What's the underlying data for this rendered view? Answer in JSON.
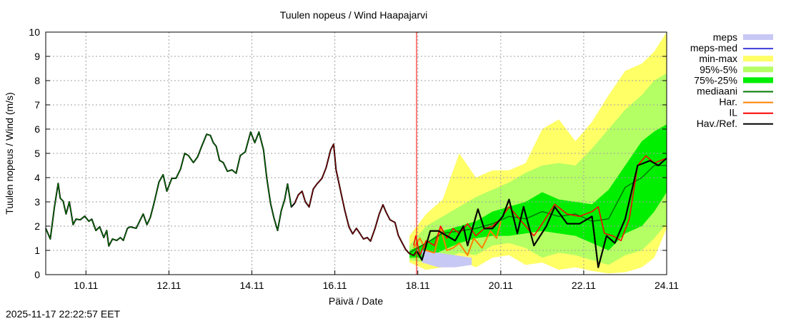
{
  "timestamp": "2025-11-17 22:22:57 EET",
  "chart_data": {
    "type": "area",
    "title": "Tuulen nopeus / Wind  Haapajarvi",
    "xlabel": "Päivä / Date",
    "ylabel": "Tuulen nopeus / Wind (m/s)",
    "xlim_day_of_november": [
      9.03,
      24.0
    ],
    "ylim": [
      0,
      10
    ],
    "yticks": [
      "0",
      "1",
      "2",
      "3",
      "4",
      "5",
      "6",
      "7",
      "8",
      "9",
      "10"
    ],
    "xticks": [
      {
        "day": 10,
        "label": "10.11"
      },
      {
        "day": 12,
        "label": "12.11"
      },
      {
        "day": 14,
        "label": "14.11"
      },
      {
        "day": 16,
        "label": "16.11"
      },
      {
        "day": 18,
        "label": "18.11"
      },
      {
        "day": 20,
        "label": "20.11"
      },
      {
        "day": 22,
        "label": "22.11"
      },
      {
        "day": 24,
        "label": "24.11"
      }
    ],
    "grid": true,
    "legend_position": "right",
    "now_line_day": 17.97,
    "now_line_color": "#ff0000",
    "legend": [
      {
        "label": "meps",
        "kind": "band",
        "color": "#c8c8f5"
      },
      {
        "label": "meps-med",
        "kind": "line",
        "color": "#3c3cdc"
      },
      {
        "label": "min-max",
        "kind": "band",
        "color": "#ffff66"
      },
      {
        "label": "95%-5%",
        "kind": "band",
        "color": "#b4ff64"
      },
      {
        "label": "75%-25%",
        "kind": "band",
        "color": "#00ee00"
      },
      {
        "label": "mediaani",
        "kind": "line",
        "color": "#007800"
      },
      {
        "label": "Har.",
        "kind": "line",
        "color": "#ff8000"
      },
      {
        "label": "IL",
        "kind": "line",
        "color": "#ff0000"
      },
      {
        "label": "Hav./Ref.",
        "kind": "line",
        "color": "#000000"
      }
    ],
    "bands": {
      "x": [
        17.8,
        18.2,
        18.6,
        19.0,
        19.4,
        19.8,
        20.2,
        20.6,
        21.0,
        21.4,
        21.8,
        22.2,
        22.6,
        23.0,
        23.4,
        23.7,
        24.0
      ],
      "min-max": {
        "upper": [
          1.6,
          2.5,
          3.1,
          5.0,
          4.0,
          4.3,
          4.3,
          4.6,
          6.0,
          6.4,
          5.5,
          6.3,
          7.4,
          8.4,
          8.7,
          9.2,
          10.0
        ],
        "lower": [
          0.5,
          0.2,
          0.3,
          0.6,
          0.3,
          0.7,
          0.8,
          0.4,
          0.5,
          0.2,
          0.3,
          0.15,
          0.05,
          0.1,
          0.3,
          0.7,
          1.9
        ]
      },
      "95%-5%": {
        "upper": [
          1.2,
          2.0,
          2.4,
          2.8,
          3.2,
          3.5,
          3.8,
          4.2,
          4.5,
          4.6,
          4.5,
          5.2,
          6.0,
          6.8,
          7.4,
          8.0,
          8.3
        ],
        "lower": [
          0.6,
          0.5,
          0.6,
          0.9,
          0.8,
          1.2,
          1.3,
          1.1,
          0.7,
          0.9,
          0.8,
          0.6,
          0.4,
          0.8,
          1.0,
          1.5,
          2.1
        ]
      },
      "75%-25%": {
        "upper": [
          1.0,
          1.3,
          1.8,
          2.0,
          2.2,
          2.6,
          2.8,
          3.0,
          3.4,
          3.1,
          3.0,
          2.9,
          3.5,
          4.5,
          5.5,
          5.9,
          6.2
        ],
        "lower": [
          0.7,
          0.7,
          1.0,
          1.3,
          1.5,
          1.6,
          1.6,
          1.7,
          1.8,
          1.7,
          1.6,
          1.3,
          1.0,
          1.7,
          2.0,
          2.6,
          3.4
        ]
      }
    },
    "meps": {
      "x": [
        18.1,
        18.5,
        18.9,
        19.3
      ],
      "upper": [
        1.0,
        0.9,
        0.8,
        0.7
      ],
      "lower": [
        0.5,
        0.3,
        0.3,
        0.4
      ]
    },
    "series": [
      {
        "name": "Hav./Ref.",
        "points": [
          [
            9.03,
            1.91
          ],
          [
            9.14,
            1.47
          ],
          [
            9.24,
            2.79
          ],
          [
            9.33,
            3.76
          ],
          [
            9.38,
            3.15
          ],
          [
            9.45,
            3.03
          ],
          [
            9.52,
            2.5
          ],
          [
            9.6,
            3.0
          ],
          [
            9.69,
            2.06
          ],
          [
            9.76,
            2.29
          ],
          [
            9.86,
            2.26
          ],
          [
            9.97,
            2.41
          ],
          [
            10.07,
            2.2
          ],
          [
            10.14,
            2.29
          ],
          [
            10.24,
            1.82
          ],
          [
            10.33,
            1.97
          ],
          [
            10.43,
            1.53
          ],
          [
            10.5,
            1.82
          ],
          [
            10.55,
            1.18
          ],
          [
            10.64,
            1.47
          ],
          [
            10.74,
            1.41
          ],
          [
            10.83,
            1.53
          ],
          [
            10.9,
            1.41
          ],
          [
            11.0,
            1.91
          ],
          [
            11.07,
            1.97
          ],
          [
            11.21,
            1.91
          ],
          [
            11.31,
            2.26
          ],
          [
            11.38,
            2.5
          ],
          [
            11.47,
            2.06
          ],
          [
            11.55,
            2.35
          ],
          [
            11.64,
            2.94
          ],
          [
            11.76,
            3.82
          ],
          [
            11.86,
            4.12
          ],
          [
            11.95,
            3.44
          ],
          [
            12.07,
            3.97
          ],
          [
            12.17,
            3.97
          ],
          [
            12.28,
            4.35
          ],
          [
            12.38,
            5.0
          ],
          [
            12.47,
            4.91
          ],
          [
            12.59,
            4.62
          ],
          [
            12.69,
            4.85
          ],
          [
            12.79,
            5.29
          ],
          [
            12.91,
            5.79
          ],
          [
            13.0,
            5.74
          ],
          [
            13.07,
            5.44
          ],
          [
            13.14,
            5.29
          ],
          [
            13.22,
            4.71
          ],
          [
            13.31,
            4.62
          ],
          [
            13.41,
            4.26
          ],
          [
            13.52,
            4.32
          ],
          [
            13.62,
            4.18
          ],
          [
            13.72,
            4.91
          ],
          [
            13.84,
            5.06
          ],
          [
            13.97,
            5.88
          ],
          [
            14.07,
            5.44
          ],
          [
            14.17,
            5.88
          ],
          [
            14.28,
            5.15
          ],
          [
            14.36,
            3.97
          ],
          [
            14.45,
            2.94
          ],
          [
            14.53,
            2.35
          ],
          [
            14.62,
            1.82
          ],
          [
            14.71,
            2.65
          ],
          [
            14.79,
            3.09
          ],
          [
            14.86,
            3.74
          ],
          [
            14.95,
            2.79
          ],
          [
            15.03,
            2.94
          ],
          [
            15.12,
            3.29
          ],
          [
            15.21,
            3.44
          ],
          [
            15.29,
            3.0
          ],
          [
            15.38,
            2.79
          ],
          [
            15.48,
            3.53
          ],
          [
            15.57,
            3.74
          ],
          [
            15.69,
            3.97
          ],
          [
            15.79,
            4.41
          ],
          [
            15.9,
            5.15
          ],
          [
            15.97,
            5.38
          ],
          [
            16.03,
            4.32
          ],
          [
            16.14,
            3.44
          ],
          [
            16.24,
            2.65
          ],
          [
            16.34,
            1.97
          ],
          [
            16.43,
            1.68
          ],
          [
            16.52,
            1.91
          ],
          [
            16.6,
            1.71
          ],
          [
            16.69,
            1.47
          ],
          [
            16.78,
            1.53
          ],
          [
            16.86,
            1.38
          ],
          [
            16.97,
            1.91
          ],
          [
            17.07,
            2.5
          ],
          [
            17.16,
            2.88
          ],
          [
            17.24,
            2.56
          ],
          [
            17.33,
            2.26
          ],
          [
            17.45,
            2.15
          ],
          [
            17.53,
            1.62
          ],
          [
            17.62,
            1.32
          ],
          [
            17.71,
            1.03
          ],
          [
            17.79,
            0.88
          ],
          [
            17.9,
            0.79
          ],
          [
            17.97,
            0.97
          ],
          [
            18.0,
            0.9
          ],
          [
            18.1,
            0.6
          ],
          [
            18.3,
            1.8
          ],
          [
            18.5,
            1.8
          ],
          [
            18.7,
            1.6
          ],
          [
            18.9,
            1.4
          ],
          [
            19.1,
            2.0
          ],
          [
            19.2,
            1.2
          ],
          [
            19.45,
            2.7
          ],
          [
            19.6,
            1.9
          ],
          [
            19.8,
            1.9
          ],
          [
            20.05,
            2.4
          ],
          [
            20.2,
            3.1
          ],
          [
            20.4,
            1.7
          ],
          [
            20.55,
            2.8
          ],
          [
            20.8,
            1.2
          ],
          [
            21.1,
            2.0
          ],
          [
            21.3,
            2.8
          ],
          [
            21.6,
            2.1
          ],
          [
            21.9,
            2.1
          ],
          [
            22.1,
            2.3
          ],
          [
            22.2,
            2.4
          ],
          [
            22.35,
            0.3
          ],
          [
            22.55,
            1.6
          ],
          [
            22.75,
            1.3
          ],
          [
            23.0,
            2.3
          ],
          [
            23.3,
            4.5
          ],
          [
            23.6,
            4.7
          ],
          [
            23.8,
            4.5
          ],
          [
            24.0,
            4.8
          ]
        ]
      },
      {
        "name": "mediaani",
        "points": [
          [
            17.8,
            0.9
          ],
          [
            18.2,
            1.3
          ],
          [
            18.6,
            1.7
          ],
          [
            19.0,
            1.8
          ],
          [
            19.4,
            1.9
          ],
          [
            19.8,
            2.1
          ],
          [
            20.2,
            2.4
          ],
          [
            20.6,
            2.3
          ],
          [
            21.0,
            2.6
          ],
          [
            21.4,
            2.4
          ],
          [
            21.8,
            2.5
          ],
          [
            22.2,
            2.2
          ],
          [
            22.6,
            2.3
          ],
          [
            23.0,
            3.6
          ],
          [
            23.4,
            4.0
          ],
          [
            23.7,
            4.5
          ],
          [
            24.0,
            4.5
          ]
        ]
      },
      {
        "name": "Har.",
        "points": [
          [
            17.9,
            1.1
          ],
          [
            18.05,
            1.5
          ],
          [
            18.2,
            1.0
          ],
          [
            18.4,
            0.9
          ],
          [
            18.55,
            1.9
          ],
          [
            18.7,
            1.0
          ],
          [
            18.85,
            1.1
          ],
          [
            19.0,
            1.3
          ],
          [
            19.2,
            0.8
          ],
          [
            19.35,
            1.5
          ],
          [
            19.55,
            1.1
          ],
          [
            19.75,
            1.8
          ],
          [
            19.9,
            1.5
          ],
          [
            20.0,
            2.2
          ]
        ]
      },
      {
        "name": "IL",
        "points": [
          [
            17.9,
            1.2
          ],
          [
            17.95,
            1.6
          ],
          [
            18.05,
            0.8
          ],
          [
            18.2,
            1.4
          ],
          [
            18.4,
            1.2
          ],
          [
            18.55,
            2.0
          ],
          [
            18.7,
            1.5
          ],
          [
            18.85,
            1.9
          ],
          [
            19.0,
            1.7
          ],
          [
            19.2,
            2.1
          ],
          [
            19.4,
            1.6
          ],
          [
            19.6,
            1.9
          ],
          [
            19.8,
            2.0
          ],
          [
            20.0,
            2.3
          ],
          [
            20.2,
            2.8
          ],
          [
            20.5,
            2.2
          ],
          [
            20.8,
            1.6
          ],
          [
            21.0,
            2.1
          ],
          [
            21.3,
            2.9
          ],
          [
            21.6,
            2.5
          ],
          [
            21.9,
            2.4
          ],
          [
            22.2,
            2.6
          ],
          [
            22.35,
            2.8
          ],
          [
            22.5,
            1.7
          ],
          [
            22.7,
            1.6
          ],
          [
            22.9,
            1.4
          ],
          [
            23.1,
            2.3
          ],
          [
            23.3,
            4.5
          ],
          [
            23.5,
            4.9
          ],
          [
            23.7,
            4.6
          ],
          [
            24.0,
            4.8
          ]
        ]
      }
    ]
  }
}
